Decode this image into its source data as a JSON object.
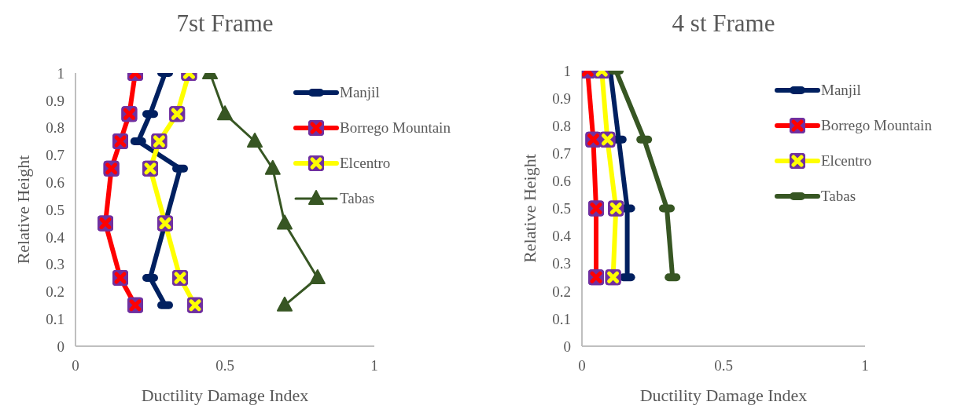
{
  "chart_data": [
    {
      "type": "line",
      "title": "7st Frame",
      "xlabel": "Ductility Damage Index",
      "ylabel": "Relative Height",
      "xlim": [
        0,
        1
      ],
      "xticks": [
        0,
        0.5,
        1
      ],
      "ylim": [
        0,
        1
      ],
      "yticks": [
        0,
        0.1,
        0.2,
        0.3,
        0.4,
        0.5,
        0.6,
        0.7,
        0.8,
        0.9,
        1
      ],
      "legend": "right",
      "series": [
        {
          "name": "Manjil",
          "color": "#002060",
          "marker": "square",
          "x": [
            0.3,
            0.25,
            0.21,
            0.35,
            0.25,
            0.3
          ],
          "values": [
            1,
            0.85,
            0.75,
            0.65,
            0.25,
            0.15
          ]
        },
        {
          "name": "Borrego Mountain",
          "color": "#ff0000",
          "marker": "cross",
          "x": [
            0.2,
            0.18,
            0.15,
            0.12,
            0.1,
            0.15,
            0.2
          ],
          "values": [
            1,
            0.85,
            0.75,
            0.65,
            0.45,
            0.25,
            0.15
          ]
        },
        {
          "name": "Elcentro",
          "color": "#ffff00",
          "marker": "cross",
          "x": [
            0.38,
            0.34,
            0.28,
            0.25,
            0.3,
            0.35,
            0.4
          ],
          "values": [
            1,
            0.85,
            0.75,
            0.65,
            0.45,
            0.25,
            0.15
          ]
        },
        {
          "name": "Tabas",
          "color": "#375623",
          "marker": "triangle",
          "x": [
            0.45,
            0.5,
            0.6,
            0.66,
            0.7,
            0.81,
            0.7
          ],
          "values": [
            1,
            0.85,
            0.75,
            0.65,
            0.45,
            0.25,
            0.15
          ]
        }
      ]
    },
    {
      "type": "line",
      "title": "4 st Frame",
      "xlabel": "Ductility Damage Index",
      "ylabel": "Relative Height",
      "xlim": [
        0,
        1
      ],
      "xticks": [
        0,
        0.5,
        1
      ],
      "ylim": [
        0,
        1
      ],
      "yticks": [
        0,
        0.1,
        0.2,
        0.3,
        0.4,
        0.5,
        0.6,
        0.7,
        0.8,
        0.9,
        1
      ],
      "legend": "right",
      "series": [
        {
          "name": "Manjil",
          "color": "#002060",
          "marker": "square",
          "x": [
            0.1,
            0.13,
            0.16,
            0.16
          ],
          "values": [
            1,
            0.75,
            0.5,
            0.25
          ]
        },
        {
          "name": "Borrego Mountain",
          "color": "#ff0000",
          "marker": "cross",
          "x": [
            0.02,
            0.04,
            0.05,
            0.05
          ],
          "values": [
            1,
            0.75,
            0.5,
            0.25
          ]
        },
        {
          "name": "Elcentro",
          "color": "#ffff00",
          "marker": "cross",
          "x": [
            0.07,
            0.09,
            0.12,
            0.11
          ],
          "values": [
            1,
            0.75,
            0.5,
            0.25
          ]
        },
        {
          "name": "Tabas",
          "color": "#375623",
          "marker": "square",
          "x": [
            0.12,
            0.22,
            0.3,
            0.32
          ],
          "values": [
            1,
            0.75,
            0.5,
            0.25
          ]
        }
      ]
    }
  ]
}
